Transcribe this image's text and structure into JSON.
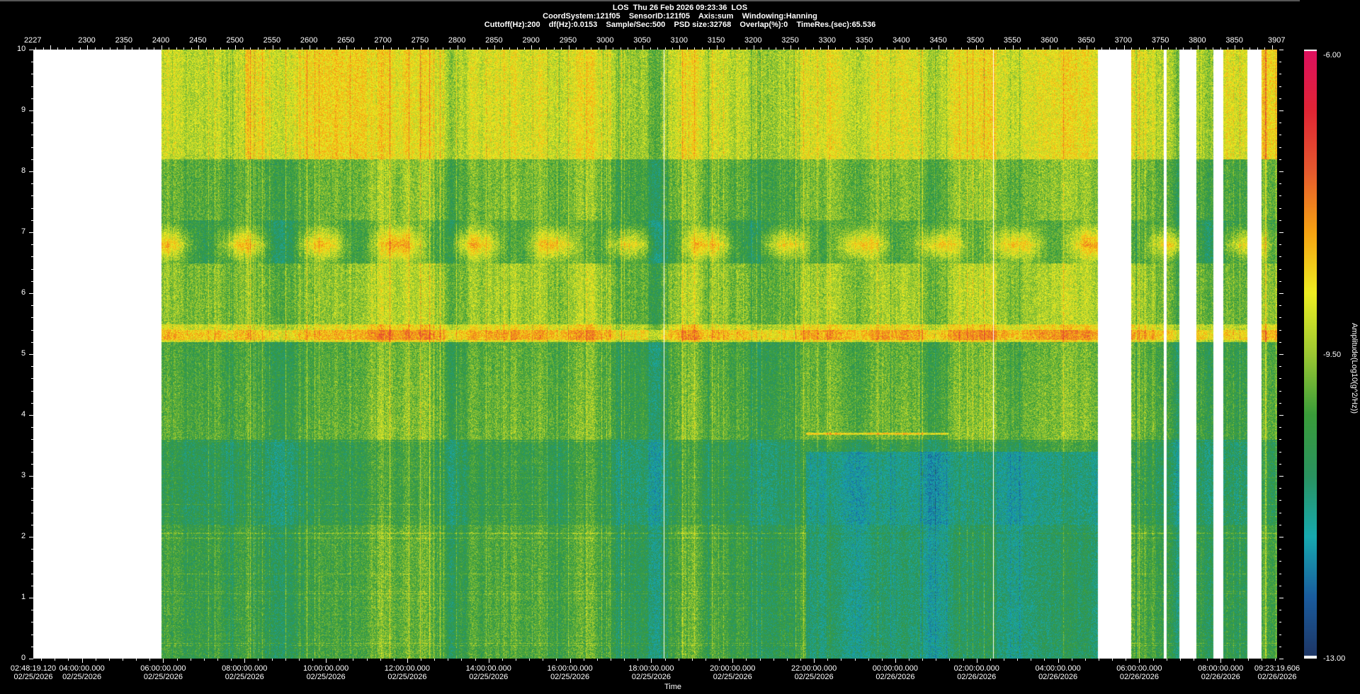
{
  "header": {
    "line1": "LOS  Thu 26 Feb 2026 09:23:36  LOS",
    "line2": "CoordSystem:121f05    SensorID:121f05    Axis:sum    Windowing:Hanning",
    "line3": "Cuttoff(Hz):200    df(Hz):0.0153    Sample/Sec:500    PSD size:32768    Overlap(%):0    TimeRes.(sec):65.536"
  },
  "chart_data": {
    "type": "heatmap",
    "title": "LOS  Thu 26 Feb 2026 09:23:36  LOS",
    "top_axis": {
      "range": [
        2227,
        3907
      ],
      "tick_labels": [
        "2227",
        "2300",
        "2350",
        "2400",
        "2450",
        "2500",
        "2550",
        "2600",
        "2650",
        "2700",
        "2750",
        "2800",
        "2850",
        "2900",
        "2950",
        "3000",
        "3050",
        "3100",
        "3150",
        "3200",
        "3250",
        "3300",
        "3350",
        "3400",
        "3450",
        "3500",
        "3550",
        "3600",
        "3650",
        "3700",
        "3750",
        "3800",
        "3850",
        "3907"
      ]
    },
    "y_axis": {
      "range": [
        0,
        10
      ],
      "tick_labels": [
        "0",
        "1",
        "2",
        "3",
        "4",
        "5",
        "6",
        "7",
        "8",
        "9",
        "10"
      ]
    },
    "x_axis": {
      "label": "Time",
      "range": [
        "02/25/2026 02:48:19.120",
        "02/26/2026 09:23:19.606"
      ],
      "ticks": [
        {
          "time": "02:48:19.120",
          "date": "02/25/2026"
        },
        {
          "time": "04:00:00.000",
          "date": "02/25/2026"
        },
        {
          "time": "06:00:00.000",
          "date": "02/25/2026"
        },
        {
          "time": "08:00:00.000",
          "date": "02/25/2026"
        },
        {
          "time": "10:00:00.000",
          "date": "02/25/2026"
        },
        {
          "time": "12:00:00.000",
          "date": "02/25/2026"
        },
        {
          "time": "14:00:00.000",
          "date": "02/25/2026"
        },
        {
          "time": "16:00:00.000",
          "date": "02/25/2026"
        },
        {
          "time": "18:00:00.000",
          "date": "02/25/2026"
        },
        {
          "time": "20:00:00.000",
          "date": "02/25/2026"
        },
        {
          "time": "22:00:00.000",
          "date": "02/25/2026"
        },
        {
          "time": "00:00:00.000",
          "date": "02/26/2026"
        },
        {
          "time": "02:00:00.000",
          "date": "02/26/2026"
        },
        {
          "time": "04:00:00.000",
          "date": "02/26/2026"
        },
        {
          "time": "06:00:00.000",
          "date": "02/26/2026"
        },
        {
          "time": "08:00:00.000",
          "date": "02/26/2026"
        },
        {
          "time": "09:23:19.606",
          "date": "02/26/2026"
        }
      ]
    },
    "missing_data": [
      [
        "02/25/2026 02:48",
        "02/25/2026 05:57"
      ],
      [
        "02/26/2026 04:58",
        "02/26/2026 05:48"
      ],
      [
        "02/26/2026 06:36",
        "02/26/2026 06:40"
      ],
      [
        "02/26/2026 06:59",
        "02/26/2026 07:24"
      ],
      [
        "02/26/2026 07:49",
        "02/26/2026 08:03"
      ],
      [
        "02/26/2026 08:39",
        "02/26/2026 09:00"
      ]
    ],
    "colorbar": {
      "label": "Amplitude(Log10(g^2/Hz))",
      "range": [
        -13.0,
        -6.0
      ],
      "tick_labels": [
        "-6.00",
        "-9.50",
        "-13.00"
      ],
      "colors": [
        "#1e3564",
        "#1a5c9e",
        "#17aab0",
        "#2a9360",
        "#3a9d3a",
        "#9cc832",
        "#eeee22",
        "#f7a312",
        "#e65a2e",
        "#e02535",
        "#dd1060"
      ]
    },
    "features": {
      "band_5_3_hz": "orange line near 5.3 Hz",
      "line_3_7_hz": "horizontal line near 3.7 Hz from ~19:00 to ~01:00"
    }
  }
}
